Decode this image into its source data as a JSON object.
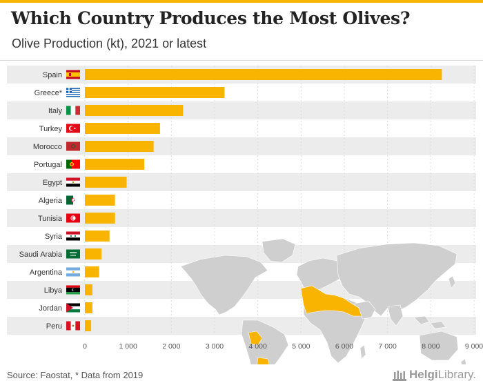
{
  "header": {
    "title": "Which Country Produces the Most Olives?",
    "subtitle": "Olive Production (kt), 2021 or latest"
  },
  "footer": {
    "source": "Source: Faostat, * Data from 2019",
    "logo_prefix": "Helgi",
    "logo_suffix": "Library."
  },
  "colors": {
    "bar": "#f8b400",
    "stripe": "#ececec",
    "map_land": "#cfcfcf",
    "map_highlight": "#f8b400"
  },
  "chart_data": {
    "type": "bar",
    "orientation": "horizontal",
    "categories": [
      "Spain",
      "Greece*",
      "Italy",
      "Turkey",
      "Morocco",
      "Portugal",
      "Egypt",
      "Algeria",
      "Tunisia",
      "Syria",
      "Saudi Arabia",
      "Argentina",
      "Libya",
      "Jordan",
      "Peru"
    ],
    "flags": [
      "flag-spain",
      "flag-greece",
      "flag-italy",
      "flag-turkey",
      "flag-morocco",
      "flag-portugal",
      "flag-egypt",
      "flag-algeria",
      "flag-tunisia",
      "flag-syria",
      "flag-saudi-arabia",
      "flag-argentina",
      "flag-libya",
      "flag-jordan",
      "flag-peru"
    ],
    "values": [
      8256,
      3230,
      2270,
      1738,
      1590,
      1375,
      966,
      696,
      698,
      570,
      385,
      330,
      175,
      175,
      145
    ],
    "xlim": [
      0,
      9000
    ],
    "xticks": [
      0,
      1000,
      2000,
      3000,
      4000,
      5000,
      6000,
      7000,
      8000,
      9000
    ],
    "xtick_labels": [
      "0",
      "1 000",
      "2 000",
      "3 000",
      "4 000",
      "5 000",
      "6 000",
      "7 000",
      "8 000",
      "9 000"
    ],
    "grid": true,
    "legend": "none",
    "xlabel": "",
    "ylabel": ""
  }
}
